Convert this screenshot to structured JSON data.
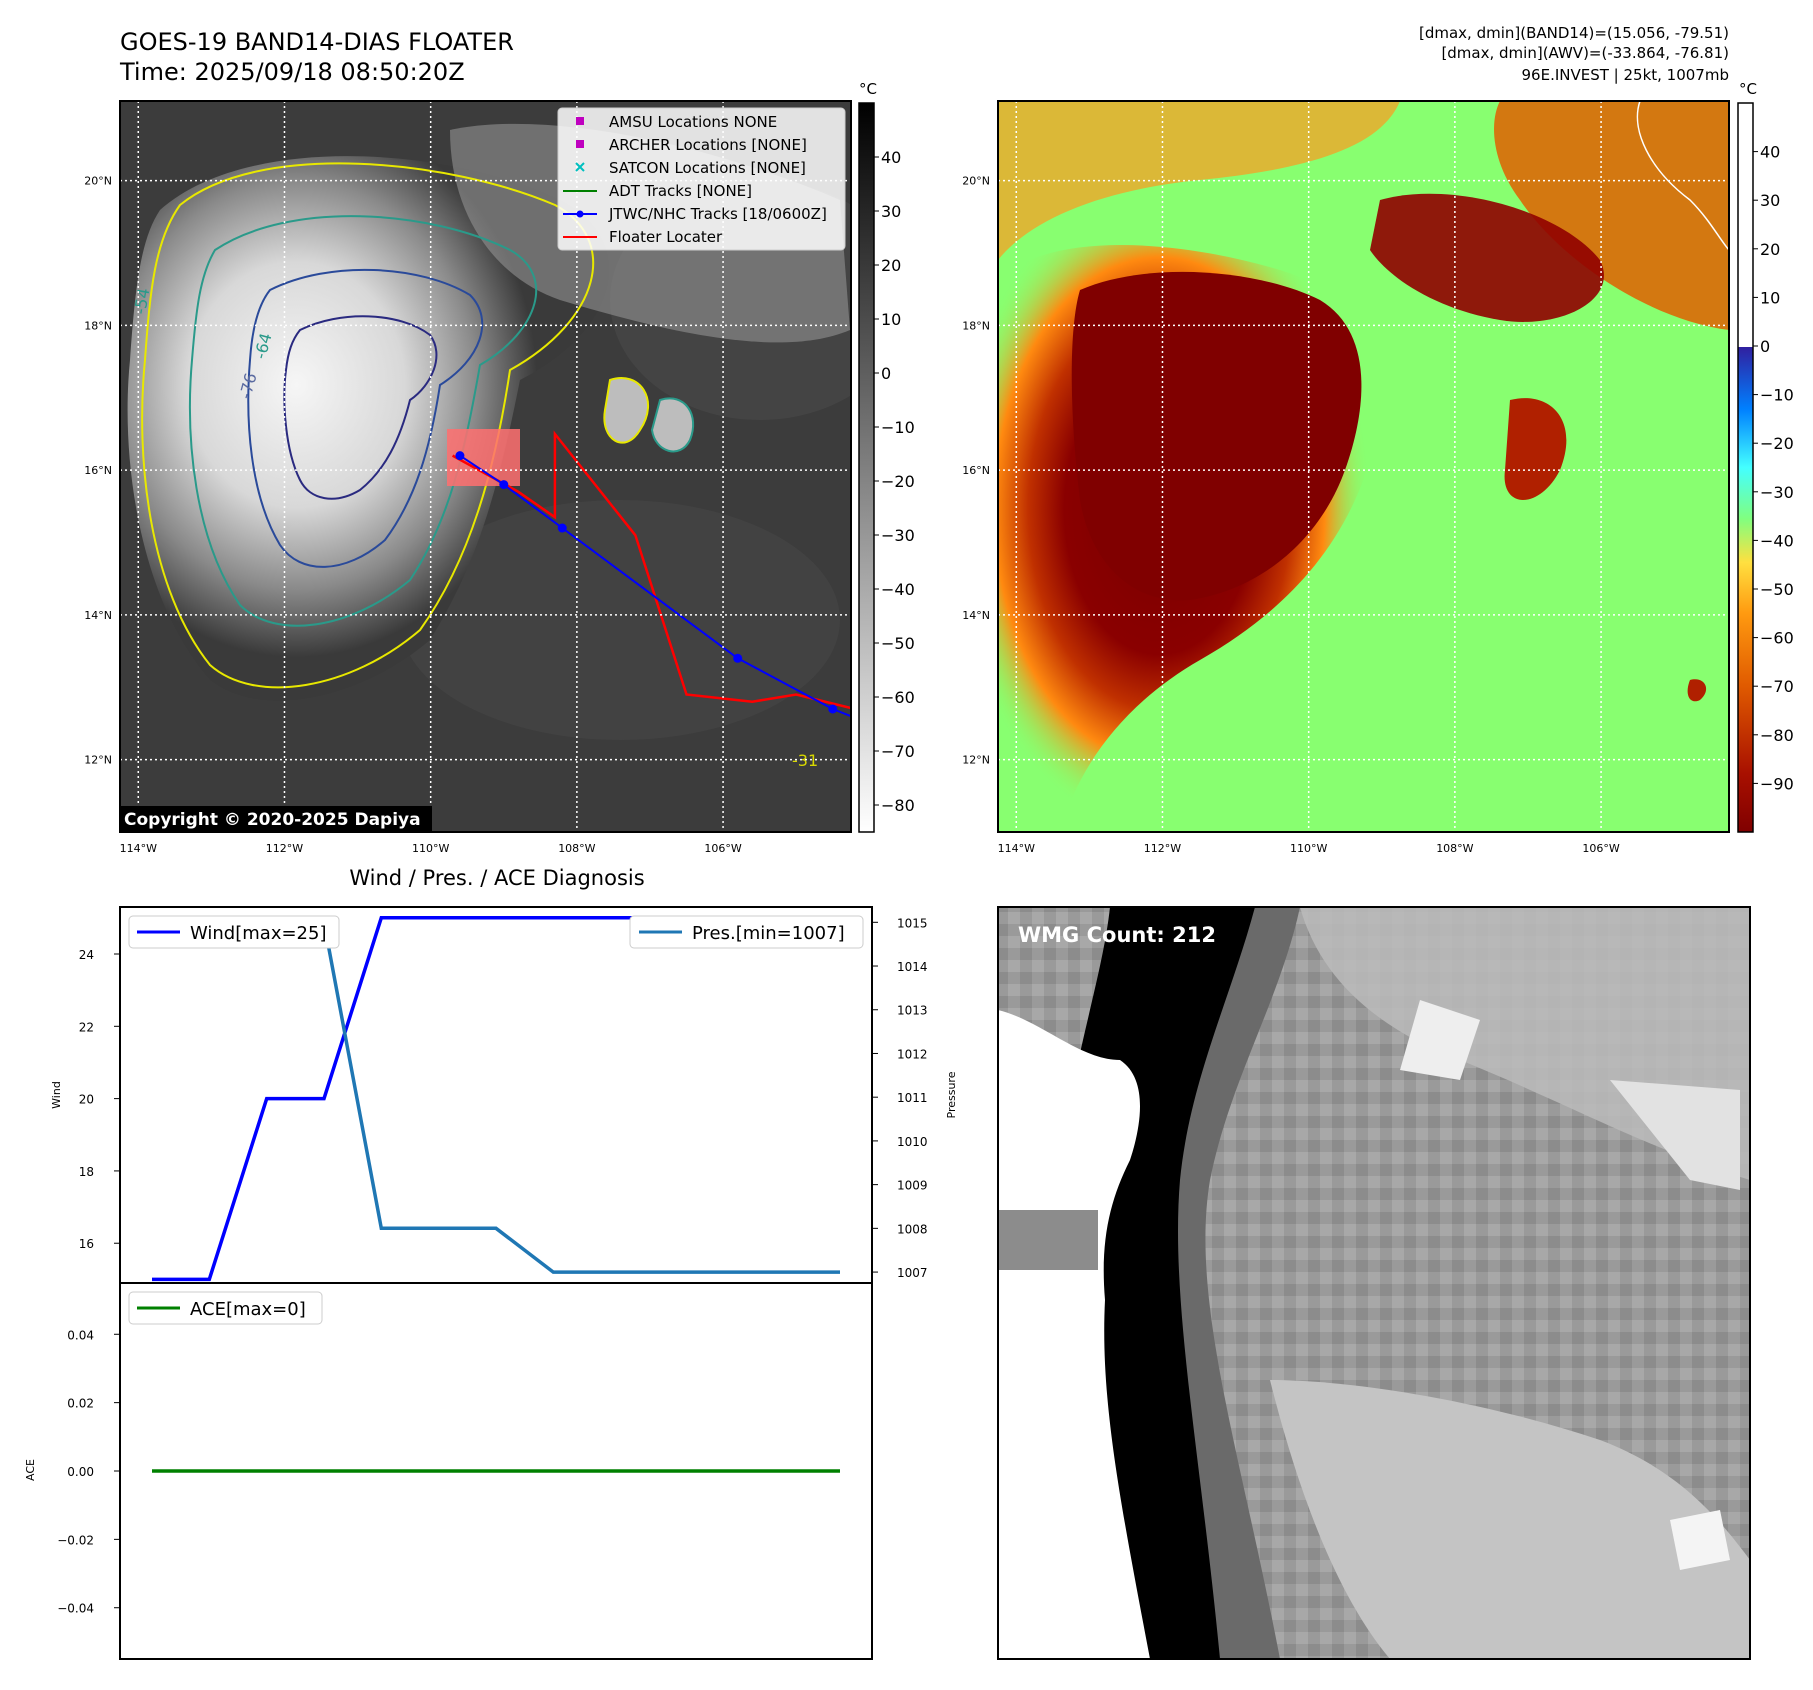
{
  "header": {
    "title": "GOES-19 BAND14-DIAS FLOATER",
    "time": "Time: 2025/09/18 08:50:20Z",
    "stats_band14": "[dmax, dmin](BAND14)=(15.056, -79.51)",
    "stats_awv": "[dmax, dmin](AWV)=(-33.864, -76.81)",
    "storm": "96E.INVEST | 25kt, 1007mb"
  },
  "map": {
    "lon_ticks": [
      "114°W",
      "112°W",
      "110°W",
      "108°W",
      "106°W"
    ],
    "lat_ticks": [
      "20°N",
      "18°N",
      "16°N",
      "14°N",
      "12°N"
    ],
    "lon_range": [
      -114.25,
      -104.25
    ],
    "lat_range": [
      11.0,
      21.1
    ],
    "copyright": "Copyright © 2020-2025 Dapiya",
    "contour_labels": [
      "-76",
      "-64",
      "-54",
      "-31"
    ]
  },
  "legend": {
    "items": [
      {
        "label": "AMSU Locations NONE",
        "color": "#bf00bf",
        "marker": "square"
      },
      {
        "label": "ARCHER Locations [NONE]",
        "color": "#bf00bf",
        "marker": "square"
      },
      {
        "label": "SATCON Locations [NONE]",
        "color": "#00bfbf",
        "marker": "x"
      },
      {
        "label": "ADT Tracks [NONE]",
        "color": "#008000",
        "marker": "line"
      },
      {
        "label": "JTWC/NHC Tracks [18/0600Z]",
        "color": "#0000ff",
        "marker": "line-dot"
      },
      {
        "label": "Floater Locater",
        "color": "#ff0000",
        "marker": "line"
      }
    ]
  },
  "tracks": {
    "jtwc": [
      [
        -109.6,
        16.2
      ],
      [
        -109.0,
        15.8
      ],
      [
        -108.2,
        15.2
      ],
      [
        -105.8,
        13.4
      ],
      [
        -104.5,
        12.7
      ],
      [
        -104.0,
        12.5
      ]
    ],
    "floater": [
      [
        -109.7,
        16.2
      ],
      [
        -108.8,
        15.7
      ],
      [
        -108.3,
        15.35
      ],
      [
        -108.3,
        16.5
      ],
      [
        -107.2,
        15.1
      ],
      [
        -106.5,
        12.9
      ],
      [
        -105.6,
        12.8
      ],
      [
        -105.0,
        12.9
      ],
      [
        -104.2,
        12.7
      ]
    ]
  },
  "colorbar_ir": {
    "unit": "°C",
    "ticks": [
      "40",
      "30",
      "20",
      "10",
      "0",
      "−10",
      "−20",
      "−30",
      "−40",
      "−50",
      "−60",
      "−70",
      "−80"
    ],
    "range": [
      -85,
      50
    ]
  },
  "colorbar_wv": {
    "unit": "°C",
    "ticks": [
      "40",
      "30",
      "20",
      "10",
      "0",
      "−10",
      "−20",
      "−30",
      "−40",
      "−50",
      "−60",
      "−70",
      "−80",
      "−90"
    ],
    "range": [
      -100,
      50
    ],
    "colors": [
      "#800000",
      "#cc3300",
      "#ff8800",
      "#ffdd44",
      "#80ff80",
      "#44ffff",
      "#0080ff",
      "#2020a0",
      "#ffffff"
    ]
  },
  "chart_data": [
    {
      "type": "line",
      "title": "Wind / Pres. / ACE Diagnosis",
      "ylabel": "Wind",
      "y2label": "Pressure",
      "ylim": [
        14.9,
        25.3
      ],
      "y2lim": [
        1006.75,
        1015.35
      ],
      "yticks": [
        "16",
        "18",
        "20",
        "22",
        "24"
      ],
      "y2ticks": [
        "1007",
        "1008",
        "1009",
        "1010",
        "1011",
        "1012",
        "1013",
        "1014",
        "1015"
      ],
      "x": [
        0,
        1,
        2,
        3,
        4,
        5,
        6,
        7,
        8,
        9,
        10,
        11,
        12
      ],
      "series": [
        {
          "name": "Wind[max=25]",
          "axis": "left",
          "color": "#0000ff",
          "values": [
            15,
            15,
            20,
            20,
            25,
            25,
            25,
            25,
            25,
            25,
            25,
            25,
            25
          ]
        },
        {
          "name": "Pres.[min=1007]",
          "axis": "right",
          "color": "#1f77b4",
          "values": [
            1015,
            1015,
            1015,
            1015,
            1008,
            1008,
            1008,
            1007,
            1007,
            1007,
            1007,
            1007,
            1007
          ]
        }
      ]
    },
    {
      "type": "line",
      "ylabel": "ACE",
      "ylim": [
        -0.055,
        0.055
      ],
      "yticks": [
        "0.04",
        "0.02",
        "0.00",
        "−0.02",
        "−0.04"
      ],
      "x": [
        0,
        1,
        2,
        3,
        4,
        5,
        6,
        7,
        8,
        9,
        10,
        11,
        12
      ],
      "series": [
        {
          "name": "ACE[max=0]",
          "color": "#008000",
          "values": [
            0,
            0,
            0,
            0,
            0,
            0,
            0,
            0,
            0,
            0,
            0,
            0,
            0
          ]
        }
      ]
    }
  ],
  "wmg": {
    "label": "WMG Count: 212"
  }
}
